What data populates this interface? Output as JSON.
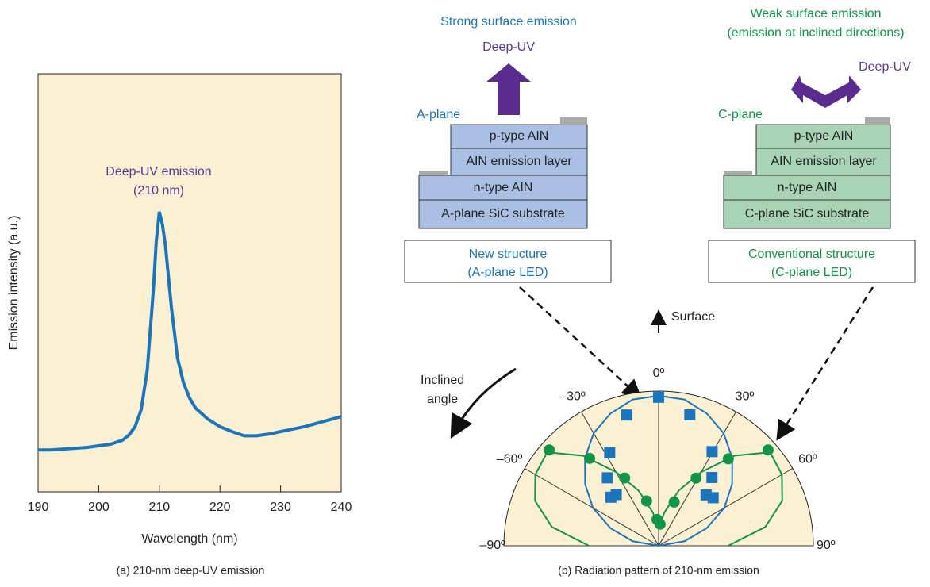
{
  "chart_data": [
    {
      "type": "line",
      "xlabel": "Wavelength (nm)",
      "ylabel": "Emission intensity (a.u.)",
      "caption": "(a) 210-nm deep-UV emission",
      "annotations": [
        "Deep-UV emission",
        "(210 nm)"
      ],
      "x": [
        190,
        192,
        194,
        196,
        198,
        200,
        202,
        204,
        205,
        206,
        207,
        208,
        209,
        209.5,
        210,
        210.5,
        211,
        212,
        213,
        214,
        215,
        216,
        218,
        220,
        222,
        224,
        226,
        228,
        230,
        232,
        234,
        236,
        238,
        240
      ],
      "series": [
        {
          "color": "#1a75bc",
          "values": [
            0.5,
            0.5,
            0.51,
            0.52,
            0.53,
            0.55,
            0.57,
            0.62,
            0.68,
            0.78,
            0.98,
            1.45,
            2.4,
            3.0,
            3.35,
            3.2,
            2.95,
            2.2,
            1.6,
            1.3,
            1.12,
            1.0,
            0.87,
            0.78,
            0.72,
            0.67,
            0.67,
            0.69,
            0.72,
            0.75,
            0.78,
            0.82,
            0.86,
            0.9
          ]
        }
      ],
      "xlim": [
        190,
        240
      ],
      "xticks": [
        190,
        200,
        210,
        220,
        230,
        240
      ],
      "ylim": [
        0,
        5
      ]
    },
    {
      "type": "polar",
      "caption": "(b) Radiation pattern of 210-nm emission",
      "thetalim": [
        -90,
        90
      ],
      "rlim": [
        0,
        1
      ],
      "thetaticks": [
        {
          "value": -90,
          "label": "–90º"
        },
        {
          "value": -60,
          "label": "–60º"
        },
        {
          "value": -30,
          "label": "–30º"
        },
        {
          "value": 0,
          "label": "0º"
        },
        {
          "value": 30,
          "label": "30º"
        },
        {
          "value": 60,
          "label": "60º"
        },
        {
          "value": 90,
          "label": "90º"
        }
      ],
      "series": [
        {
          "color": "#1a75bc",
          "mode": "line",
          "theta": [
            -90,
            -80,
            -70,
            -60,
            -50,
            -40,
            -30,
            -20,
            -10,
            0,
            10,
            20,
            30,
            40,
            50,
            60,
            70,
            80,
            90
          ],
          "values": [
            0,
            0.17,
            0.33,
            0.49,
            0.62,
            0.74,
            0.84,
            0.91,
            0.96,
            0.97,
            0.96,
            0.91,
            0.84,
            0.74,
            0.62,
            0.49,
            0.33,
            0.17,
            0
          ]
        },
        {
          "color": "#10944a",
          "mode": "line",
          "theta": [
            -90,
            -80,
            -70,
            -60,
            -50,
            -40,
            -30,
            -20,
            -10,
            0,
            10,
            20,
            30,
            40,
            50,
            60,
            70,
            80,
            90
          ],
          "values": [
            0.45,
            0.7,
            0.85,
            0.92,
            0.94,
            0.76,
            0.55,
            0.38,
            0.22,
            0.12,
            0.22,
            0.38,
            0.55,
            0.76,
            0.94,
            0.92,
            0.85,
            0.7,
            0.45
          ]
        },
        {
          "color": "#1a75bc",
          "mode": "square",
          "theta": [
            0,
            -13.7,
            13.4,
            -27.7,
            29.6,
            -37,
            38,
            -44.5,
            -39.6,
            43,
            48.6
          ],
          "values": [
            0.96,
            0.87,
            0.87,
            0.68,
            0.7,
            0.55,
            0.56,
            0.44,
            0.43,
            0.45,
            0.47
          ]
        },
        {
          "color": "#10944a",
          "mode": "circle",
          "theta": [
            -48.8,
            -38.3,
            -26.6,
            -15,
            -3.5,
            4,
            19.6,
            29,
            38.7,
            48.8
          ],
          "values": [
            0.94,
            0.72,
            0.49,
            0.3,
            0.17,
            0.14,
            0.3,
            0.5,
            0.72,
            0.94
          ]
        }
      ]
    }
  ],
  "diagram": {
    "a": {
      "heading": "Strong surface emission",
      "arrow": "Deep-UV",
      "plane": "A-plane",
      "layers": [
        "p-type AIN",
        "AIN emission layer",
        "n-type AIN",
        "A-plane SiC substrate"
      ],
      "box": [
        "New structure",
        "(A-plane LED)"
      ]
    },
    "c": {
      "heading": [
        "Weak surface emission",
        "(emission at inclined directions)"
      ],
      "arrow": "Deep-UV",
      "plane": "C-plane",
      "layers": [
        "p-type AIN",
        "AIN emission layer",
        "n-type AIN",
        "C-plane SiC substrate"
      ],
      "box": [
        "Conventional structure",
        "(C-plane LED)"
      ]
    },
    "surface": "Surface",
    "inclined": [
      "Inclined",
      "angle"
    ]
  }
}
